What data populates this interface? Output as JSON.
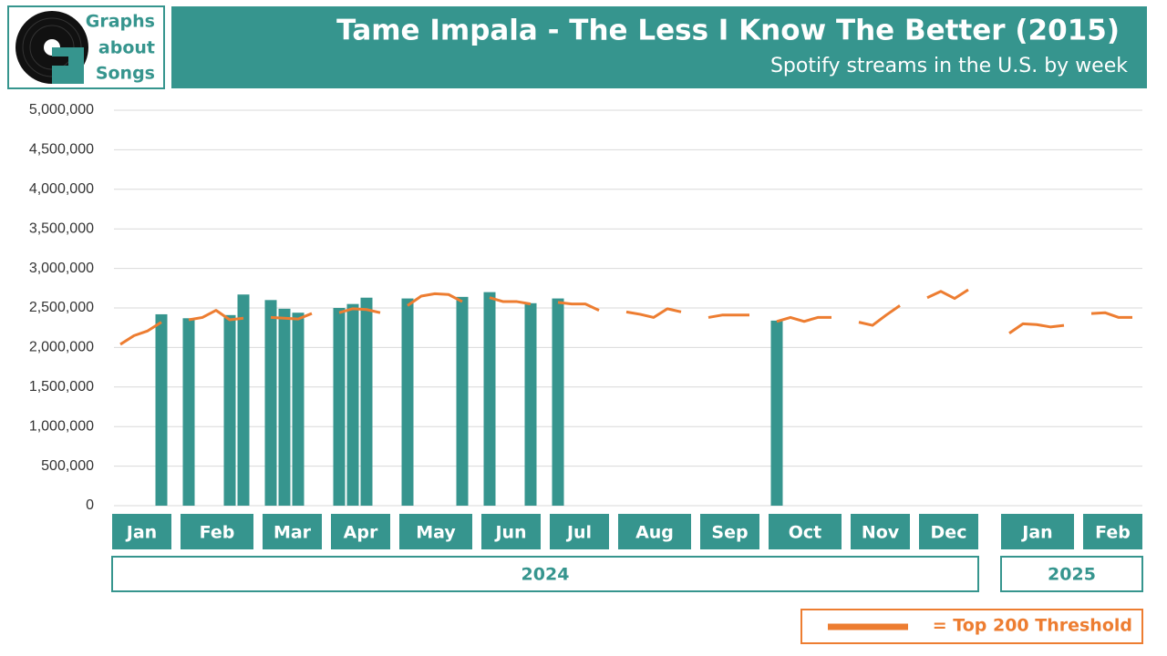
{
  "brand": {
    "lines": [
      "Graphs",
      "about",
      "Songs"
    ]
  },
  "chart_data": {
    "type": "bar",
    "title": "Tame Impala - The Less I Know The Better (2015)",
    "subtitle": "Spotify streams in the U.S. by week",
    "categories": [
      "Jan",
      "Jan",
      "Jan",
      "Jan",
      "Feb",
      "Feb",
      "Feb",
      "Feb",
      "Feb",
      "Mar",
      "Mar",
      "Mar",
      "Mar",
      "Apr",
      "Apr",
      "Apr",
      "Apr",
      "May",
      "May",
      "May",
      "May",
      "May",
      "Jun",
      "Jun",
      "Jun",
      "Jun",
      "Jul",
      "Jul",
      "Jul",
      "Jul",
      "Aug",
      "Aug",
      "Aug",
      "Aug",
      "Aug",
      "Sep",
      "Sep",
      "Sep",
      "Sep",
      "Oct",
      "Oct",
      "Oct",
      "Oct",
      "Oct",
      "Nov",
      "Nov",
      "Nov",
      "Nov",
      "Dec",
      "Dec",
      "Dec",
      "Dec",
      "Jan",
      "Jan",
      "Jan",
      "Jan",
      "Jan",
      "Feb",
      "Feb",
      "Feb",
      "Feb"
    ],
    "years": [
      "2024",
      "2024",
      "2024",
      "2024",
      "2024",
      "2024",
      "2024",
      "2024",
      "2024",
      "2024",
      "2024",
      "2024",
      "2024",
      "2024",
      "2024",
      "2024",
      "2024",
      "2024",
      "2024",
      "2024",
      "2024",
      "2024",
      "2024",
      "2024",
      "2024",
      "2024",
      "2024",
      "2024",
      "2024",
      "2024",
      "2024",
      "2024",
      "2024",
      "2024",
      "2024",
      "2024",
      "2024",
      "2024",
      "2024",
      "2024",
      "2024",
      "2024",
      "2024",
      "2024",
      "2024",
      "2024",
      "2024",
      "2024",
      "2024",
      "2024",
      "2024",
      "2024",
      "2025",
      "2025",
      "2025",
      "2025",
      "2025",
      "2025",
      "2025",
      "2025",
      "2025"
    ],
    "series": [
      {
        "type": "bar",
        "color": "#36958e",
        "values": [
          null,
          null,
          null,
          2420000,
          2370000,
          null,
          null,
          2410000,
          2670000,
          2600000,
          2490000,
          2440000,
          null,
          2500000,
          2550000,
          2630000,
          null,
          2620000,
          null,
          null,
          null,
          2640000,
          2700000,
          null,
          null,
          2560000,
          2620000,
          null,
          null,
          null,
          null,
          null,
          null,
          null,
          null,
          null,
          null,
          null,
          null,
          2340000,
          null,
          null,
          null,
          null,
          null,
          null,
          null,
          null,
          null,
          null,
          null,
          null,
          null,
          null,
          null,
          null,
          null,
          null,
          null,
          null,
          null
        ]
      },
      {
        "type": "line",
        "name": "= Top 200 Threshold",
        "color": "#ed7d31",
        "values": [
          2040000,
          2150000,
          2210000,
          2320000,
          2350000,
          2380000,
          2470000,
          2350000,
          2370000,
          2380000,
          2370000,
          2360000,
          2430000,
          2440000,
          2490000,
          2480000,
          2440000,
          2530000,
          2650000,
          2680000,
          2670000,
          2580000,
          2630000,
          2580000,
          2580000,
          2550000,
          2570000,
          2550000,
          2550000,
          2470000,
          2450000,
          2420000,
          2380000,
          2490000,
          2450000,
          2380000,
          2410000,
          2410000,
          2410000,
          2330000,
          2380000,
          2330000,
          2380000,
          2380000,
          2320000,
          2280000,
          2410000,
          2530000,
          2630000,
          2710000,
          2620000,
          2730000,
          2180000,
          2300000,
          2290000,
          2260000,
          2280000,
          2430000,
          2440000,
          2380000,
          2380000
        ]
      }
    ],
    "ylim": [
      0,
      5000000
    ],
    "yticks": [
      0,
      {
        "value": 500000,
        "label": "500,000"
      },
      {
        "value": 1000000,
        "label": "1,000,000"
      },
      {
        "value": 1500000,
        "label": "1,500,000"
      },
      {
        "value": 2000000,
        "label": "2,000,000"
      },
      {
        "value": 2500000,
        "label": "2,500,000"
      },
      {
        "value": 3000000,
        "label": "3,000,000"
      },
      {
        "value": 3500000,
        "label": "3,500,000"
      },
      {
        "value": 4000000,
        "label": "4,000,000"
      },
      {
        "value": 4500000,
        "label": "4,500,000"
      },
      {
        "value": 5000000,
        "label": "5,000,000"
      }
    ],
    "grid": true
  }
}
